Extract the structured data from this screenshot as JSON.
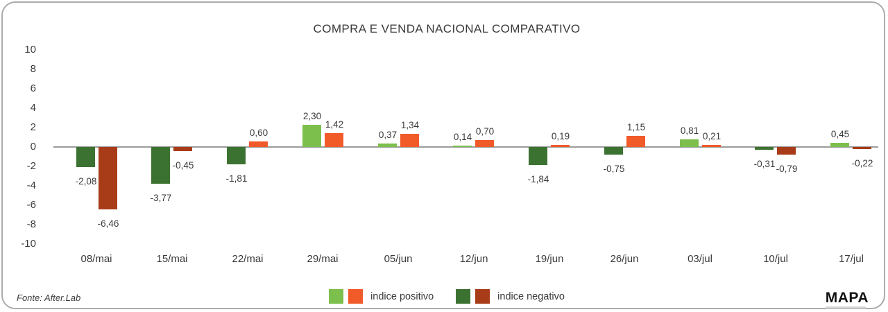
{
  "title": "COMPRA E VENDA NACIONAL COMPARATIVO",
  "footer": {
    "source": "Fonte: After.Lab",
    "logo": "MAPA"
  },
  "legend": [
    {
      "label": "indice positivo",
      "swatches": [
        "#7cbf4d",
        "#f15a29"
      ]
    },
    {
      "label": "indice negativo",
      "swatches": [
        "#3c7231",
        "#a83c19"
      ]
    }
  ],
  "chart_data": {
    "type": "bar",
    "title": "COMPRA E VENDA NACIONAL COMPARATIVO",
    "categories": [
      "08/mai",
      "15/mai",
      "22/mai",
      "29/mai",
      "05/jun",
      "12/jun",
      "19/jun",
      "26/jun",
      "03/jul",
      "10/jul",
      "17/jul"
    ],
    "series": [
      {
        "name": "serie_1",
        "values": [
          -2.08,
          -3.77,
          -1.81,
          2.3,
          0.37,
          0.14,
          -1.84,
          -0.75,
          0.81,
          -0.31,
          0.45
        ],
        "labels": [
          "-2,08",
          "-3,77",
          "-1,81",
          "2,30",
          "0,37",
          "0,14",
          "-1,84",
          "-0,75",
          "0,81",
          "-0,31",
          "0,45"
        ],
        "color_positive": "#7cbf4d",
        "color_negative": "#3c7231"
      },
      {
        "name": "serie_2",
        "values": [
          -6.46,
          -0.45,
          0.6,
          1.42,
          1.34,
          0.7,
          0.19,
          1.15,
          0.21,
          -0.79,
          -0.22
        ],
        "labels": [
          "-6,46",
          "-0,45",
          "0,60",
          "1,42",
          "1,34",
          "0,70",
          "0,19",
          "1,15",
          "0,21",
          "-0,79",
          "-0,22"
        ],
        "color_positive": "#f15a29",
        "color_negative": "#a83c19"
      }
    ],
    "ylim": [
      -10,
      10
    ],
    "yticks": [
      10,
      8,
      6,
      4,
      2,
      0,
      -2,
      -4,
      -6,
      -8,
      -10
    ],
    "grid": false,
    "legend_position": "bottom",
    "legend_entries": [
      "indice positivo",
      "indice negativo"
    ],
    "decimal_separator": ","
  }
}
